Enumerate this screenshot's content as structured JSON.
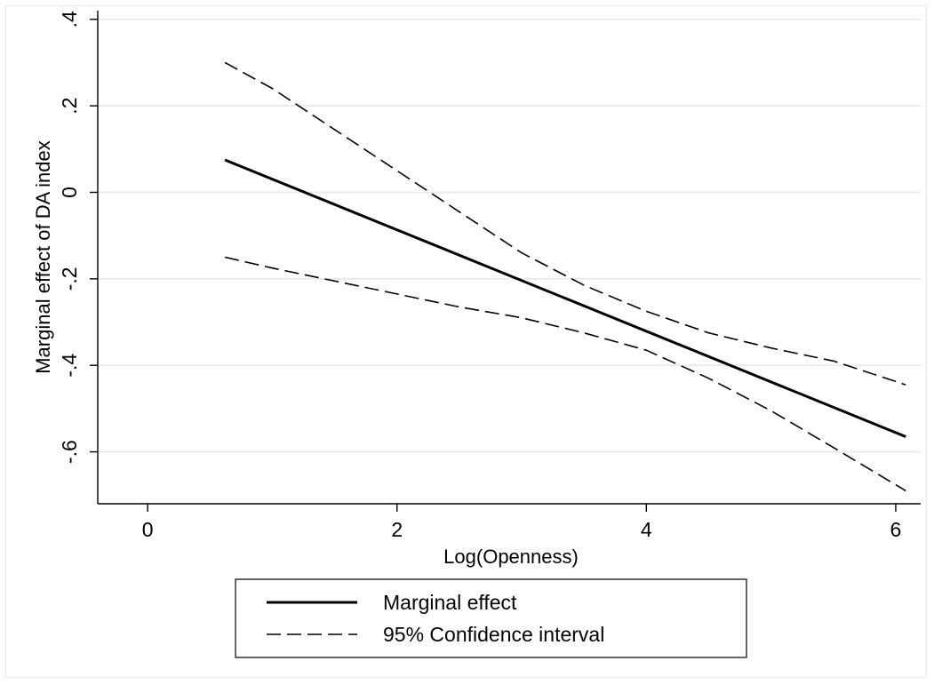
{
  "chart_data": {
    "type": "line",
    "title": "",
    "xlabel": "Log(Openness)",
    "ylabel": "Marginal effect of DA index",
    "xlim": [
      -0.4,
      6.2
    ],
    "ylim": [
      -0.72,
      0.42
    ],
    "xticks": [
      0,
      2,
      4,
      6
    ],
    "xtick_labels": [
      "0",
      "2",
      "4",
      "6"
    ],
    "yticks": [
      0.4,
      0.2,
      0,
      -0.2,
      -0.4,
      -0.6
    ],
    "ytick_labels": [
      ".4",
      ".2",
      "0",
      "-.2",
      "-.4",
      "-.6"
    ],
    "grid": "horizontal",
    "legend_position": "bottom",
    "series": [
      {
        "name": "Marginal effect",
        "style": "solid",
        "color": "#000000",
        "x": [
          0.62,
          6.08
        ],
        "y": [
          0.075,
          -0.565
        ]
      },
      {
        "name": "95% Confidence interval",
        "style": "dashed",
        "color": "#000000",
        "x": [
          0.62,
          1.0,
          1.5,
          2.0,
          2.5,
          3.0,
          3.5,
          4.0,
          4.5,
          5.0,
          5.5,
          6.08
        ],
        "y": [
          0.3,
          0.24,
          0.145,
          0.05,
          -0.045,
          -0.14,
          -0.215,
          -0.275,
          -0.325,
          -0.36,
          -0.39,
          -0.445
        ]
      },
      {
        "name": "",
        "style": "dashed",
        "color": "#000000",
        "x": [
          0.62,
          1.0,
          1.5,
          2.0,
          2.5,
          3.0,
          3.5,
          4.0,
          4.5,
          5.0,
          5.5,
          6.08
        ],
        "y": [
          -0.15,
          -0.175,
          -0.205,
          -0.235,
          -0.265,
          -0.29,
          -0.325,
          -0.365,
          -0.43,
          -0.505,
          -0.59,
          -0.69
        ]
      }
    ],
    "legend": {
      "items": [
        {
          "label": "Marginal effect",
          "style": "solid"
        },
        {
          "label": "95% Confidence interval",
          "style": "dashed"
        }
      ]
    }
  }
}
